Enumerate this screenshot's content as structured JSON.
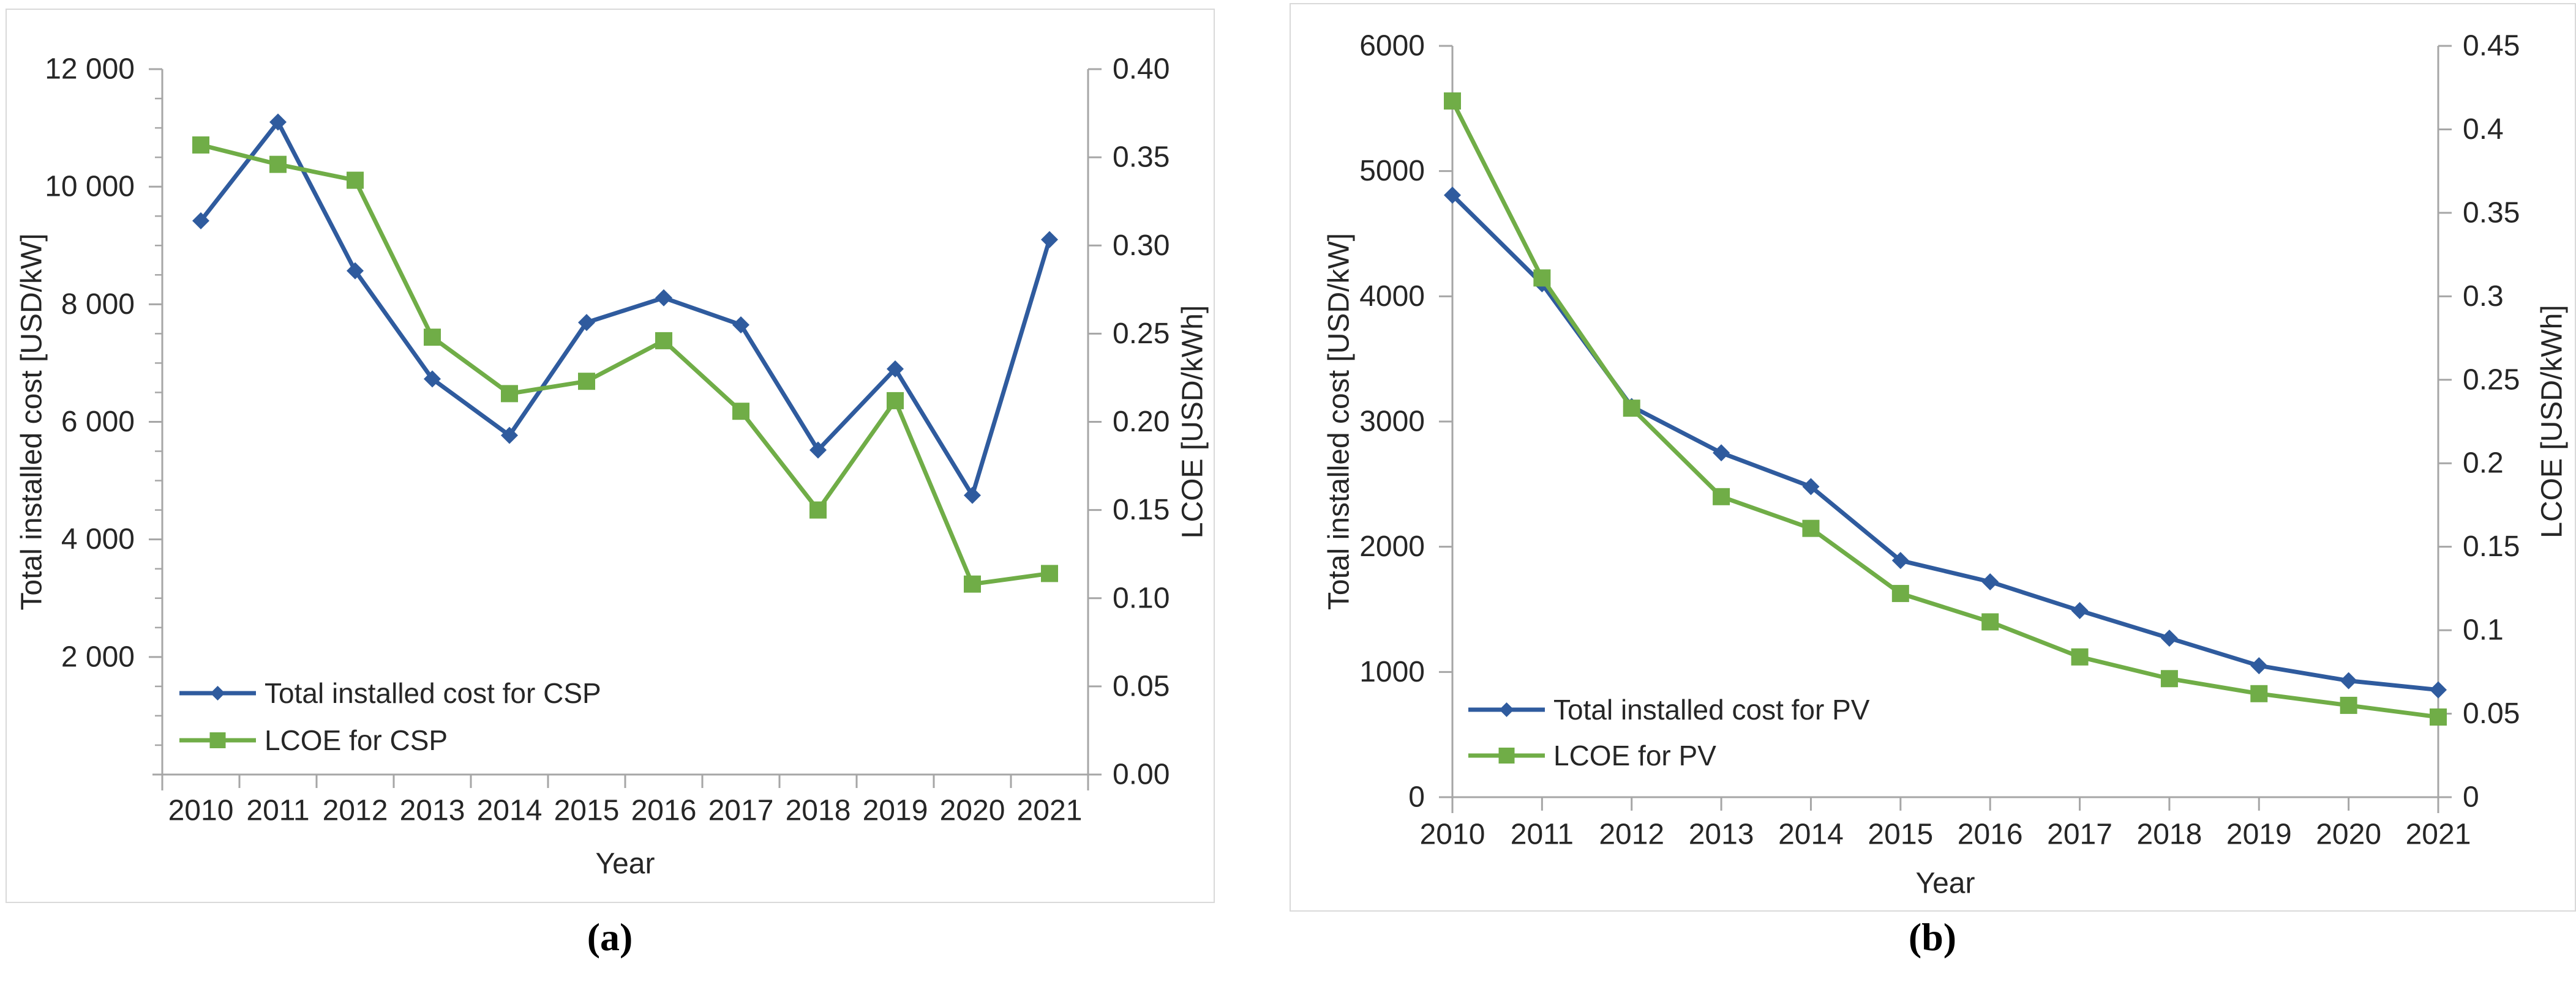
{
  "figure": {
    "captions": {
      "a": "(a)",
      "b": "(b)"
    },
    "colors": {
      "cost_line": "#2F5B9E",
      "lcoe_line": "#70AD47",
      "axis": "#A6A6A6",
      "panel_border": "#D9D9D9",
      "text": "#262626"
    }
  },
  "chart_data": [
    {
      "id": "csp",
      "type": "line",
      "panel_caption": "(a)",
      "categories": [
        "2010",
        "2011",
        "2012",
        "2013",
        "2014",
        "2015",
        "2016",
        "2017",
        "2018",
        "2019",
        "2020",
        "2021"
      ],
      "xlabel": "Year",
      "y_left": {
        "label": "Total installed cost [USD/kW]",
        "lim": [
          0,
          12000
        ],
        "tick_values": [
          2000,
          4000,
          6000,
          8000,
          10000,
          12000
        ],
        "tick_labels": [
          "2 000",
          "4 000",
          "6 000",
          "8 000",
          "10 000",
          "12 000"
        ]
      },
      "y_right": {
        "label": "LCOE [USD/kWh]",
        "lim": [
          0,
          0.4
        ],
        "tick_values": [
          0,
          0.05,
          0.1,
          0.15,
          0.2,
          0.25,
          0.3,
          0.35,
          0.4
        ],
        "tick_labels": [
          "0.00",
          "0.05",
          "0.10",
          "0.15",
          "0.20",
          "0.25",
          "0.30",
          "0.35",
          "0.40"
        ]
      },
      "grid": false,
      "legend_position": "inside-lower-left",
      "series": [
        {
          "name": "Total installed cost for CSP",
          "axis": "left",
          "color": "#2F5B9E",
          "marker": "diamond",
          "values": [
            9420,
            11100,
            8570,
            6730,
            5770,
            7690,
            8110,
            7650,
            5520,
            6900,
            4750,
            9100
          ]
        },
        {
          "name": "LCOE for CSP",
          "axis": "right",
          "color": "#70AD47",
          "marker": "square",
          "values": [
            0.357,
            0.346,
            0.337,
            0.248,
            0.216,
            0.223,
            0.246,
            0.206,
            0.15,
            0.212,
            0.108,
            0.114
          ]
        }
      ]
    },
    {
      "id": "pv",
      "type": "line",
      "panel_caption": "(b)",
      "categories": [
        "2010",
        "2011",
        "2012",
        "2013",
        "2014",
        "2015",
        "2016",
        "2017",
        "2018",
        "2019",
        "2020",
        "2021"
      ],
      "xlabel": "Year",
      "y_left": {
        "label": "Total installed cost [USD/kW]",
        "lim": [
          0,
          6000
        ],
        "tick_values": [
          0,
          1000,
          2000,
          3000,
          4000,
          5000,
          6000
        ],
        "tick_labels": [
          "0",
          "1000",
          "2000",
          "3000",
          "4000",
          "5000",
          "6000"
        ]
      },
      "y_right": {
        "label": "LCOE [USD/kWh]",
        "lim": [
          0,
          0.45
        ],
        "tick_values": [
          0,
          0.05,
          0.1,
          0.15,
          0.2,
          0.25,
          0.3,
          0.35,
          0.4,
          0.45
        ],
        "tick_labels": [
          "0",
          "0.05",
          "0.1",
          "0.15",
          "0.2",
          "0.25",
          "0.3",
          "0.35",
          "0.4",
          "0.45"
        ]
      },
      "grid": false,
      "legend_position": "inside-lower-left",
      "series": [
        {
          "name": "Total installed cost for PV",
          "axis": "left",
          "color": "#2F5B9E",
          "marker": "diamond",
          "values": [
            4808,
            4100,
            3120,
            2750,
            2480,
            1890,
            1720,
            1490,
            1270,
            1050,
            930,
            857
          ]
        },
        {
          "name": "LCOE for PV",
          "axis": "right",
          "color": "#70AD47",
          "marker": "square",
          "values": [
            0.417,
            0.311,
            0.233,
            0.18,
            0.161,
            0.122,
            0.105,
            0.084,
            0.071,
            0.062,
            0.055,
            0.048
          ]
        }
      ]
    }
  ]
}
